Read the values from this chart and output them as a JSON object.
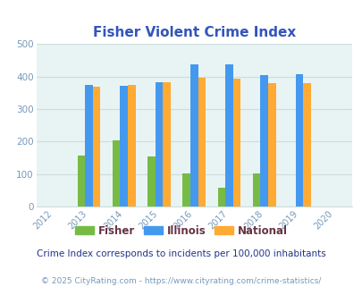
{
  "title": "Fisher Violent Crime Index",
  "color_fisher": "#77bb44",
  "color_illinois": "#4499ee",
  "color_national": "#ffaa33",
  "color_bg": "#e8f4f4",
  "ylim": [
    0,
    500
  ],
  "yticks": [
    0,
    100,
    200,
    300,
    400,
    500
  ],
  "legend_labels": [
    "Fisher",
    "Illinois",
    "National"
  ],
  "footnote1": "Crime Index corresponds to incidents per 100,000 inhabitants",
  "footnote2": "© 2025 CityRating.com - https://www.cityrating.com/crime-statistics/",
  "bar_width": 0.22,
  "title_color": "#3355bb",
  "tick_color": "#7799bb",
  "grid_color": "#ccdddd",
  "legend_text_color": "#663344",
  "footnote1_color": "#223388",
  "footnote2_color": "#7799bb",
  "fisher_years": [
    2013,
    2014,
    2015,
    2016,
    2017,
    2018
  ],
  "fisher_vals": [
    158,
    205,
    155,
    103,
    57,
    102
  ],
  "illinois_years": [
    2013,
    2014,
    2015,
    2016,
    2017,
    2018,
    2019
  ],
  "illinois_vals": [
    374,
    371,
    384,
    438,
    438,
    405,
    408
  ],
  "national_years": [
    2013,
    2014,
    2015,
    2016,
    2017,
    2018,
    2019
  ],
  "national_vals": [
    369,
    376,
    384,
    397,
    394,
    381,
    381
  ]
}
